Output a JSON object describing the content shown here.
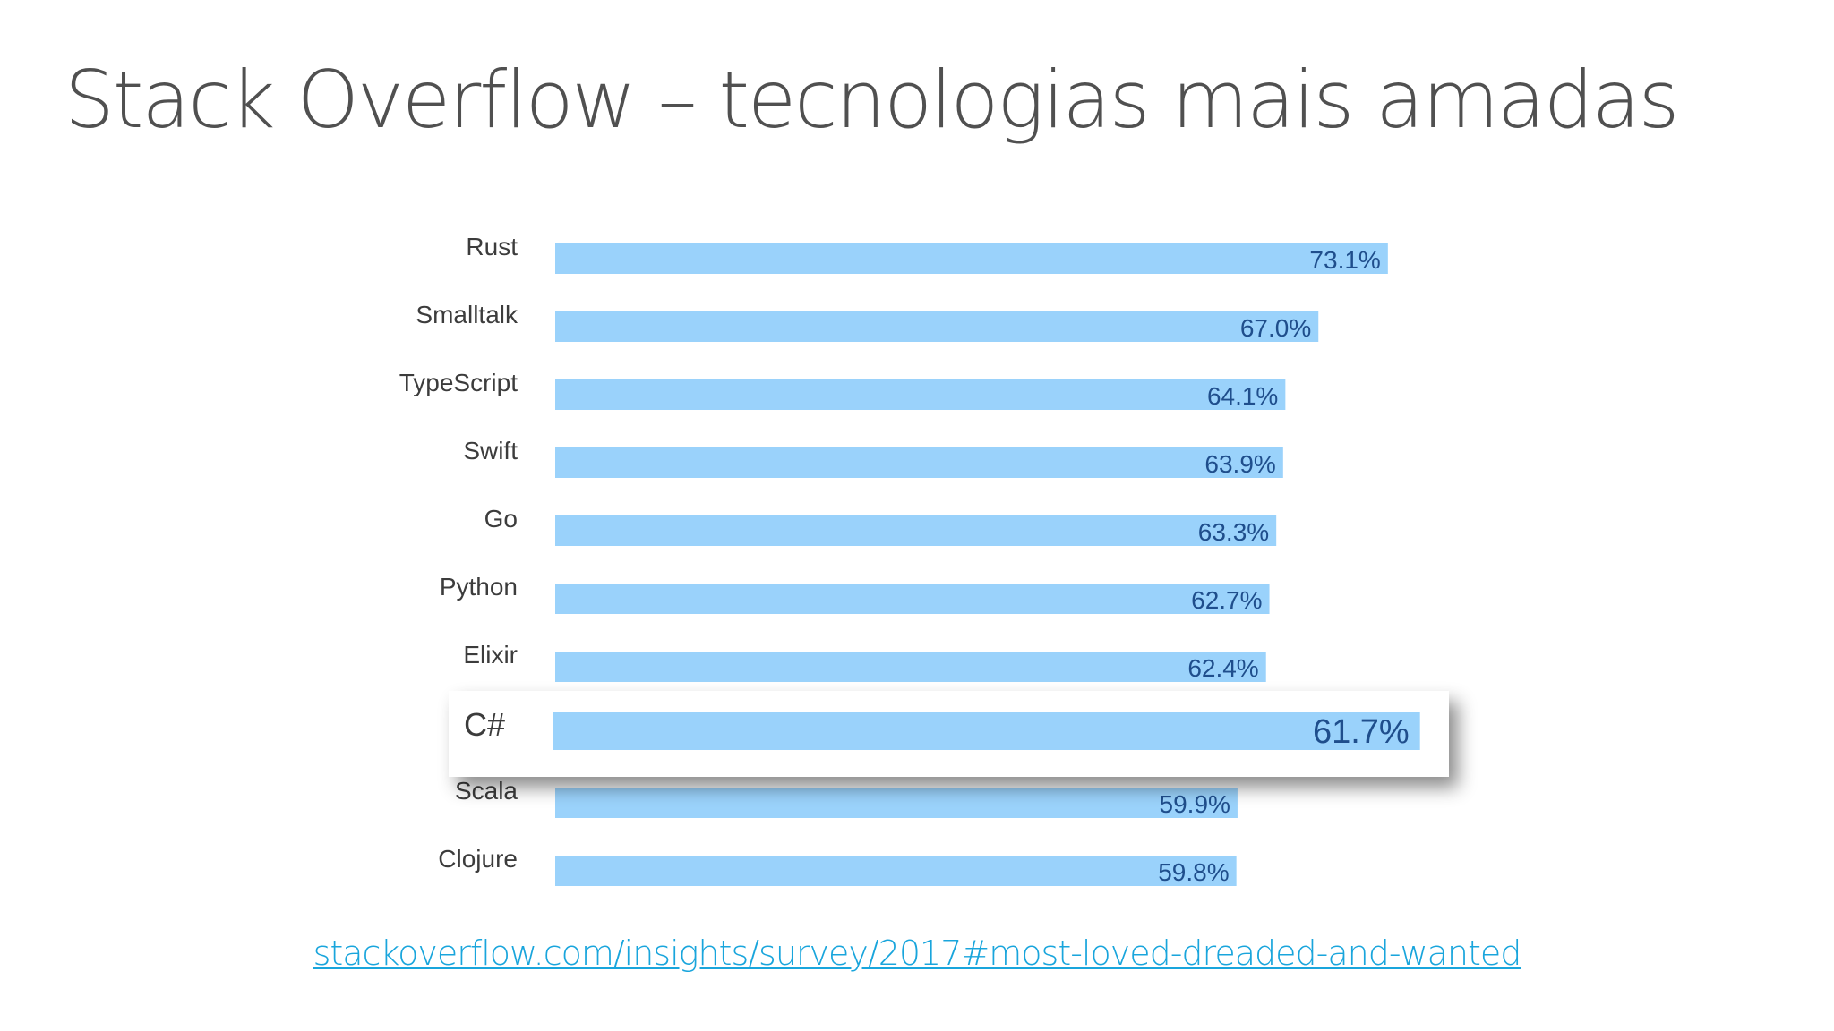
{
  "slide": {
    "title": "Stack Overflow – tecnologias mais amadas",
    "link": "stackoverflow.com/insights/survey/2017#most-loved-dreaded-and-wanted"
  },
  "chart_data": {
    "type": "bar",
    "orientation": "horizontal",
    "categories": [
      "Rust",
      "Smalltalk",
      "TypeScript",
      "Swift",
      "Go",
      "Python",
      "Elixir",
      "C#",
      "Scala",
      "Clojure"
    ],
    "values": [
      73.1,
      67.0,
      64.1,
      63.9,
      63.3,
      62.7,
      62.4,
      61.7,
      59.9,
      59.8
    ],
    "value_labels": [
      "73.1%",
      "67.0%",
      "64.1%",
      "63.9%",
      "63.3%",
      "62.7%",
      "62.4%",
      "61.7%",
      "59.9%",
      "59.8%"
    ],
    "highlighted_category": "C#",
    "bar_color": "#9ad2fb",
    "value_label_color": "#1f4e8c",
    "title": "",
    "xlabel": "",
    "ylabel": "",
    "grid": false,
    "legend": "none"
  }
}
